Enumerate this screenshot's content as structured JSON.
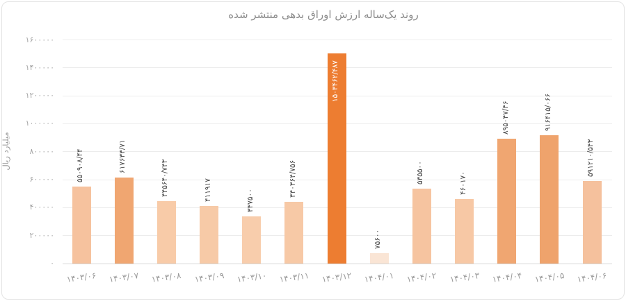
{
  "chart_data": {
    "type": "bar",
    "title": "روند یک‌ساله ارزش اوراق بدهی منتشر شده",
    "ylabel": "میلیارد ریال",
    "xlabel": "",
    "ylim": [
      0,
      1600000
    ],
    "ytick_step": 200000,
    "ytick_labels_fa": [
      "۰",
      "۲۰۰۰۰۰",
      "۴۰۰۰۰۰",
      "۶۰۰۰۰۰",
      "۸۰۰۰۰۰",
      "۱۰۰۰۰۰۰",
      "۱۲۰۰۰۰۰",
      "۱۴۰۰۰۰۰",
      "۱۶۰۰۰۰۰"
    ],
    "grid": true,
    "legend": false,
    "categories": [
      "۱۴۰۳/۰۶",
      "۱۴۰۳/۰۷",
      "۱۴۰۳/۰۸",
      "۱۴۰۳/۰۹",
      "۱۴۰۳/۱۰",
      "۱۴۰۳/۱۱",
      "۱۴۰۳/۱۲",
      "۱۴۰۴/۰۱",
      "۱۴۰۴/۰۲",
      "۱۴۰۴/۰۳",
      "۱۴۰۴/۰۴",
      "۱۴۰۴/۰۵",
      "۱۴۰۴/۰۶"
    ],
    "values": [
      550908.44,
      617633.71,
      445640.743,
      411917,
      337500,
      440364.756,
      1503462.487,
      75600,
      535500,
      460170,
      895047.46,
      916415.066,
      591210.543
    ],
    "value_labels_fa": [
      "۵۵۰۹۰۸/۴۴",
      "۶۱۷۶۳۳/۷۱",
      "۴۴۵۶۴۰/۷۴۳",
      "۴۱۱۹۱۷",
      "۳۳۷۵۰۰",
      "۴۴۰۳۶۴/۷۵۶",
      "۱۵۰۳۴۶۲/۴۸۷",
      "۷۵۶۰۰",
      "۵۳۵۵۰۰",
      "۴۶۰۱۷۰",
      "۸۹۵۰۴۷/۴۶",
      "۹۱۶۴۱۵/۰۶۶",
      "۵۹۱۲۱۰/۵۴۳"
    ],
    "bar_colors": [
      "#F6C29E",
      "#F0A671",
      "#F8CBA8",
      "#F7CAA7",
      "#F8CDAC",
      "#F7C9A6",
      "#ED7D31",
      "#FAE5D5",
      "#F6C4A0",
      "#F7C8A5",
      "#F0A671",
      "#EFA36C",
      "#F5C19D"
    ],
    "label_inside_bar": [
      false,
      false,
      false,
      false,
      false,
      false,
      true,
      false,
      false,
      false,
      false,
      false,
      false
    ]
  },
  "colors": {
    "title_text": "#8b8b8b",
    "axis_text": "#a3a3a3",
    "gridline": "#ececec",
    "axis_line": "#d6d6d6",
    "bar_value_text": "#474747",
    "max_bar": "#ED7D31",
    "card_border": "#e3e3e3"
  }
}
